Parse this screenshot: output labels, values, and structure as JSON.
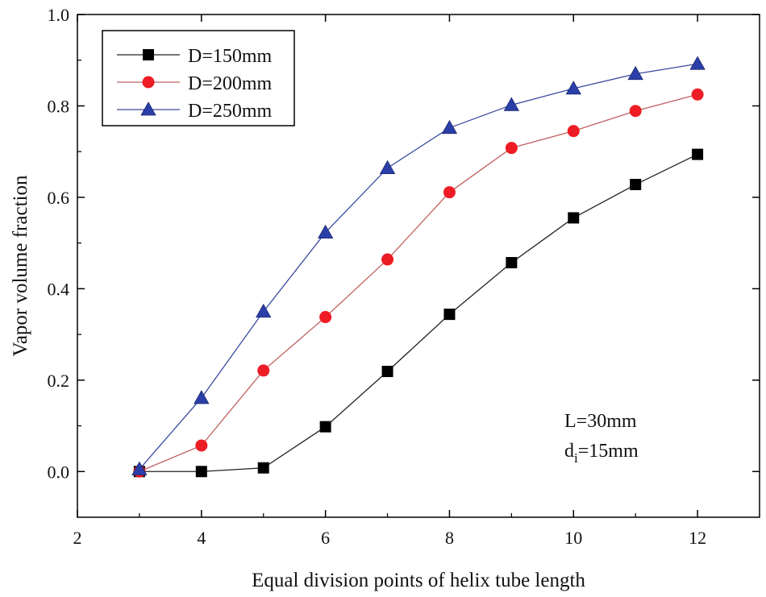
{
  "chart_data": {
    "type": "line",
    "title": "",
    "xlabel": "Equal division points of helix tube length",
    "ylabel": "Vapor volume fraction",
    "xlim": [
      2,
      13
    ],
    "ylim": [
      -0.1,
      1.0
    ],
    "xticks": [
      2,
      4,
      6,
      8,
      10,
      12
    ],
    "yticks": [
      0.0,
      0.2,
      0.4,
      0.6,
      0.8,
      1.0
    ],
    "xtick_labels": [
      "2",
      "4",
      "6",
      "8",
      "10",
      "12"
    ],
    "ytick_labels": [
      "0.0",
      "0.2",
      "0.4",
      "0.6",
      "0.8",
      "1.0"
    ],
    "grid": false,
    "legend_position": "top-left",
    "x": [
      3,
      4,
      5,
      6,
      7,
      8,
      9,
      10,
      11,
      12
    ],
    "series": [
      {
        "name": "D=150mm",
        "marker": "square",
        "color": "#000000",
        "line_color": "#222222",
        "values": [
          0.0,
          0.0,
          0.008,
          0.098,
          0.219,
          0.344,
          0.457,
          0.555,
          0.628,
          0.694
        ]
      },
      {
        "name": "D=200mm",
        "marker": "circle",
        "color": "#ee1c25",
        "line_color": "#c06060",
        "values": [
          0.0,
          0.057,
          0.221,
          0.338,
          0.464,
          0.611,
          0.708,
          0.745,
          0.789,
          0.825
        ]
      },
      {
        "name": "D=250mm",
        "marker": "triangle",
        "color": "#2b3fa8",
        "line_color": "#3a4aa0",
        "values": [
          0.005,
          0.161,
          0.35,
          0.523,
          0.664,
          0.752,
          0.802,
          0.838,
          0.87,
          0.892
        ]
      }
    ],
    "annotations": {
      "line1": "L=30mm",
      "line2_base": "d",
      "line2_sub": "i",
      "line2_rest": "=15mm"
    }
  }
}
